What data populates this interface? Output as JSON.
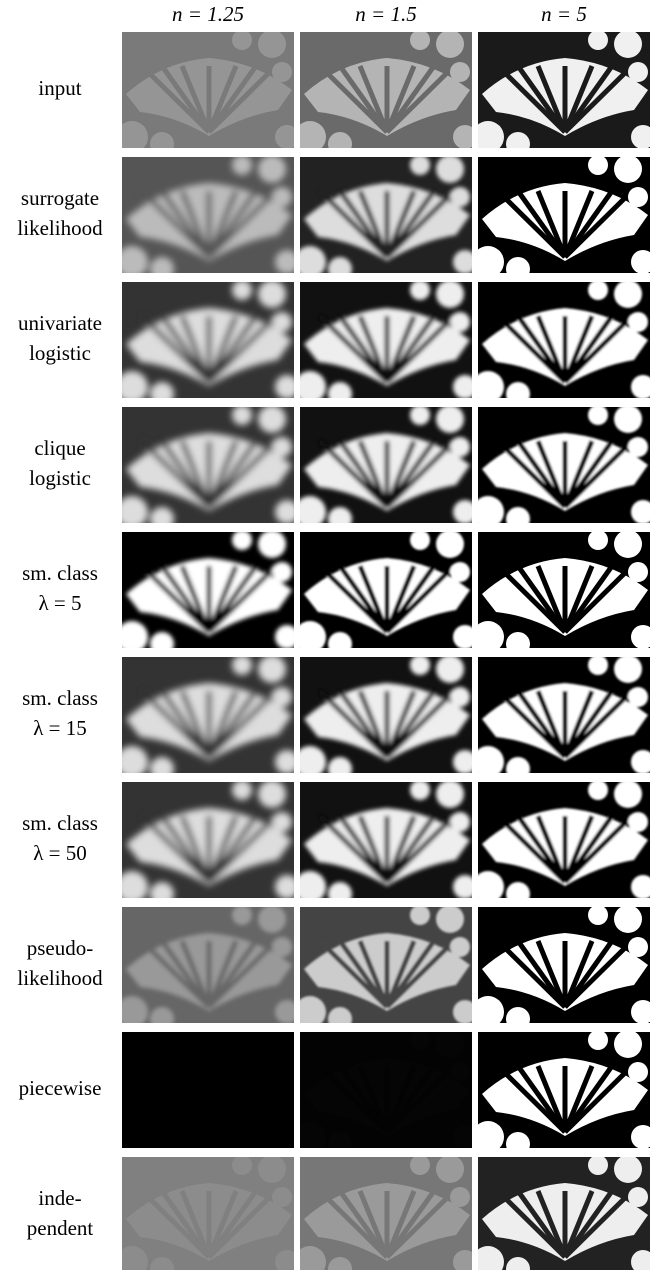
{
  "header": {
    "columns": [
      "n = 1.25",
      "n = 1.5",
      "n = 5"
    ]
  },
  "rows": [
    {
      "label": [
        "input"
      ]
    },
    {
      "label": [
        "surrogate",
        "likelihood"
      ]
    },
    {
      "label": [
        "univariate",
        "logistic"
      ]
    },
    {
      "label": [
        "clique",
        "logistic"
      ]
    },
    {
      "label": [
        "sm. class",
        "λ = 5"
      ]
    },
    {
      "label": [
        "sm. class",
        "λ = 15"
      ]
    },
    {
      "label": [
        "sm. class",
        "λ = 50"
      ]
    },
    {
      "label": [
        "pseudo-",
        "likelihood"
      ]
    },
    {
      "label": [
        "piecewise"
      ]
    },
    {
      "label": [
        "inde-",
        "pendent"
      ]
    }
  ]
}
